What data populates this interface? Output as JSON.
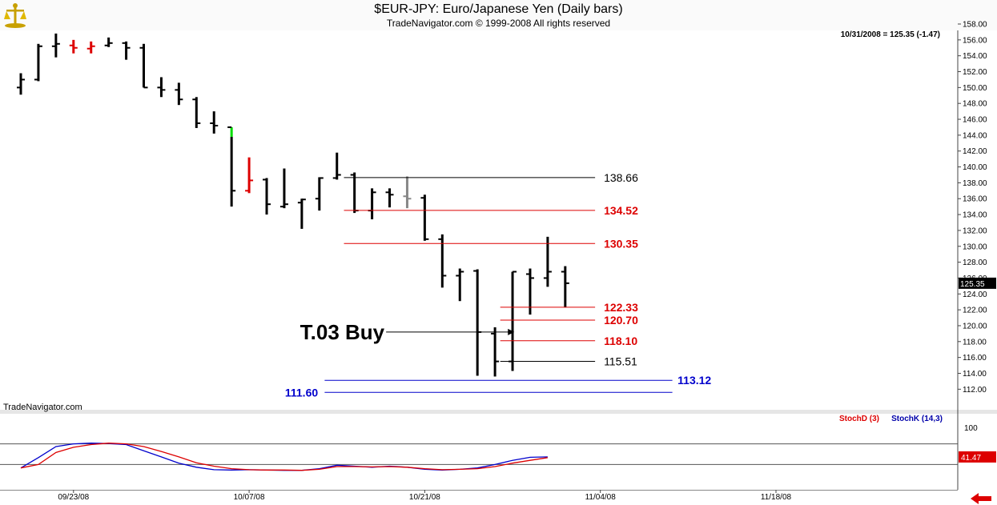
{
  "header": {
    "title": "$EUR-JPY:  Euro/Japanese Yen  (Daily bars)",
    "subtitle": "TradeNavigator.com © 1999-2008 All rights reserved",
    "last_info": "10/31/2008 = 125.35 (-1.47)"
  },
  "chart_data": [
    {
      "type": "ohlc",
      "ylim": [
        111,
        158.5
      ],
      "y_ticks": [
        112,
        114,
        116,
        118,
        120,
        122,
        124,
        126,
        128,
        130,
        132,
        134,
        136,
        138,
        140,
        142,
        144,
        146,
        148,
        150,
        152,
        154,
        156,
        158
      ],
      "y_tick_labels": [
        "112.00",
        "114.00",
        "116.00",
        "118.00",
        "120.00",
        "122.00",
        "124.00",
        "126.00",
        "128.00",
        "130.00",
        "132.00",
        "134.00",
        "136.00",
        "138.00",
        "140.00",
        "142.00",
        "144.00",
        "146.00",
        "148.00",
        "150.00",
        "152.00",
        "154.00",
        "156.00",
        "158.00"
      ],
      "x_tick_labels": [
        "09/23/08",
        "10/07/08",
        "10/21/08",
        "11/04/08",
        "11/18/08"
      ],
      "x_tick_bars": [
        3,
        13,
        23,
        33,
        43
      ],
      "last_price_label": "125.35",
      "watermark": "TradeNavigator.com",
      "bars": [
        {
          "o": 150.0,
          "h": 151.8,
          "l": 149.1,
          "c": 151.0
        },
        {
          "o": 151.0,
          "h": 155.5,
          "l": 150.8,
          "c": 155.2
        },
        {
          "o": 155.2,
          "h": 156.8,
          "l": 153.8,
          "c": 155.5,
          "color": "#000000"
        },
        {
          "o": 155.3,
          "h": 156.0,
          "l": 154.3,
          "c": 155.0,
          "color": "#dd0000"
        },
        {
          "o": 154.9,
          "h": 155.8,
          "l": 154.3,
          "c": 155.2,
          "color": "#dd0000"
        },
        {
          "o": 155.3,
          "h": 156.3,
          "l": 155.1,
          "c": 155.6
        },
        {
          "o": 155.6,
          "h": 155.8,
          "l": 153.5,
          "c": 155.0
        },
        {
          "o": 155.0,
          "h": 155.5,
          "l": 150.0,
          "c": 150.0
        },
        {
          "o": 150.0,
          "h": 151.3,
          "l": 148.8,
          "c": 149.7
        },
        {
          "o": 149.7,
          "h": 150.6,
          "l": 147.8,
          "c": 148.5
        },
        {
          "o": 148.5,
          "h": 148.8,
          "l": 144.9,
          "c": 145.5
        },
        {
          "o": 145.5,
          "h": 147.0,
          "l": 144.2,
          "c": 145.2
        },
        {
          "o": 145.0,
          "h": 145.0,
          "l": 135.0,
          "c": 137.0,
          "color": "#000000",
          "h_color": "#00dd00"
        },
        {
          "o": 137.0,
          "h": 141.2,
          "l": 136.7,
          "c": 138.3,
          "color": "#dd0000"
        },
        {
          "o": 138.4,
          "h": 138.6,
          "l": 134.0,
          "c": 135.3
        },
        {
          "o": 135.0,
          "h": 139.8,
          "l": 134.8,
          "c": 135.3
        },
        {
          "o": 135.5,
          "h": 136.0,
          "l": 132.2,
          "c": 135.9
        },
        {
          "o": 136.0,
          "h": 138.7,
          "l": 134.5,
          "c": 138.6
        },
        {
          "o": 138.6,
          "h": 141.8,
          "l": 138.4,
          "c": 139.0
        },
        {
          "o": 139.0,
          "h": 139.3,
          "l": 134.2,
          "c": 134.5
        },
        {
          "o": 134.5,
          "h": 137.3,
          "l": 133.4,
          "c": 136.8
        },
        {
          "o": 136.8,
          "h": 137.3,
          "l": 134.9,
          "c": 136.5
        },
        {
          "o": 136.3,
          "h": 138.8,
          "l": 134.8,
          "c": 136.0,
          "color": "#888888"
        },
        {
          "o": 136.1,
          "h": 136.5,
          "l": 130.7,
          "c": 130.9
        },
        {
          "o": 130.9,
          "h": 131.5,
          "l": 124.8,
          "c": 126.3
        },
        {
          "o": 126.3,
          "h": 127.2,
          "l": 123.1,
          "c": 126.8
        },
        {
          "o": 126.9,
          "h": 127.1,
          "l": 113.7,
          "c": 119.2
        },
        {
          "o": 119.0,
          "h": 119.8,
          "l": 113.6,
          "c": 115.5
        },
        {
          "o": 115.5,
          "h": 126.8,
          "l": 114.3,
          "c": 126.8
        },
        {
          "o": 126.5,
          "h": 127.2,
          "l": 121.4,
          "c": 126.0
        },
        {
          "o": 126.0,
          "h": 131.2,
          "l": 124.9,
          "c": 126.8
        },
        {
          "o": 126.8,
          "h": 127.5,
          "l": 122.3,
          "c": 125.35
        }
      ]
    },
    {
      "type": "line",
      "legend": [
        {
          "text": "StochD (3)",
          "color": "#dd0000"
        },
        {
          "text": "StochK (14,3)",
          "color": "#0000aa"
        }
      ],
      "ylim": [
        0,
        100
      ],
      "y_ticks": [
        100
      ],
      "y_tick_labels": [
        "100"
      ],
      "ref_lines": [
        80,
        20
      ],
      "last_value_label": "41.47",
      "series": [
        {
          "name": "StochK (14,3)",
          "color": "#0000cc",
          "values": [
            10,
            40,
            72,
            80,
            82,
            81,
            78,
            60,
            42,
            24,
            12,
            5,
            4,
            5,
            4,
            3,
            3,
            8,
            18,
            15,
            12,
            15,
            12,
            6,
            4,
            6,
            10,
            20,
            32,
            41,
            42
          ]
        },
        {
          "name": "StochD (3)",
          "color": "#dd0000",
          "values": [
            10,
            20,
            55,
            70,
            78,
            82,
            80,
            72,
            58,
            42,
            25,
            15,
            8,
            5,
            4,
            4,
            3,
            6,
            14,
            14,
            13,
            14,
            12,
            8,
            5,
            6,
            8,
            14,
            24,
            32,
            40
          ]
        }
      ]
    }
  ],
  "annotations": {
    "levels": [
      {
        "value": 138.66,
        "label": "138.66",
        "color": "#000000",
        "line_color": "#000000",
        "x1_bar": 18.4,
        "x2_bar": 32.7,
        "label_bar": 33.2
      },
      {
        "value": 134.52,
        "label": "134.52",
        "color": "#dd0000",
        "line_color": "#dd0000",
        "x1_bar": 18.4,
        "x2_bar": 32.7,
        "label_bar": 33.2
      },
      {
        "value": 130.35,
        "label": "130.35",
        "color": "#dd0000",
        "line_color": "#dd0000",
        "x1_bar": 18.4,
        "x2_bar": 32.7,
        "label_bar": 33.2
      },
      {
        "value": 122.33,
        "label": "122.33",
        "color": "#dd0000",
        "line_color": "#dd0000",
        "x1_bar": 27.3,
        "x2_bar": 32.7,
        "label_bar": 33.2
      },
      {
        "value": 120.7,
        "label": "120.70",
        "color": "#dd0000",
        "line_color": "#dd0000",
        "x1_bar": 27.3,
        "x2_bar": 32.7,
        "label_bar": 33.2
      },
      {
        "value": 118.1,
        "label": "118.10",
        "color": "#dd0000",
        "line_color": "#dd0000",
        "x1_bar": 27.3,
        "x2_bar": 32.7,
        "label_bar": 33.2
      },
      {
        "value": 115.51,
        "label": "115.51",
        "color": "#000000",
        "line_color": "#000000",
        "x1_bar": 27.3,
        "x2_bar": 32.7,
        "label_bar": 33.2
      },
      {
        "value": 113.12,
        "label": "113.12",
        "color": "#0000cc",
        "line_color": "#0000cc",
        "x1_bar": 17.3,
        "x2_bar": 37.1,
        "label_bar": 37.4
      },
      {
        "value": 111.6,
        "label": "111.60",
        "color": "#0000cc",
        "line_color": "#0000cc",
        "x1_bar": 17.3,
        "x2_bar": 37.1,
        "label_bar": 15.1
      }
    ],
    "buy_label": "T.03 Buy",
    "buy_arrow": {
      "value": 119.2,
      "from_bar": 20.8,
      "to_bar": 28.1
    }
  }
}
